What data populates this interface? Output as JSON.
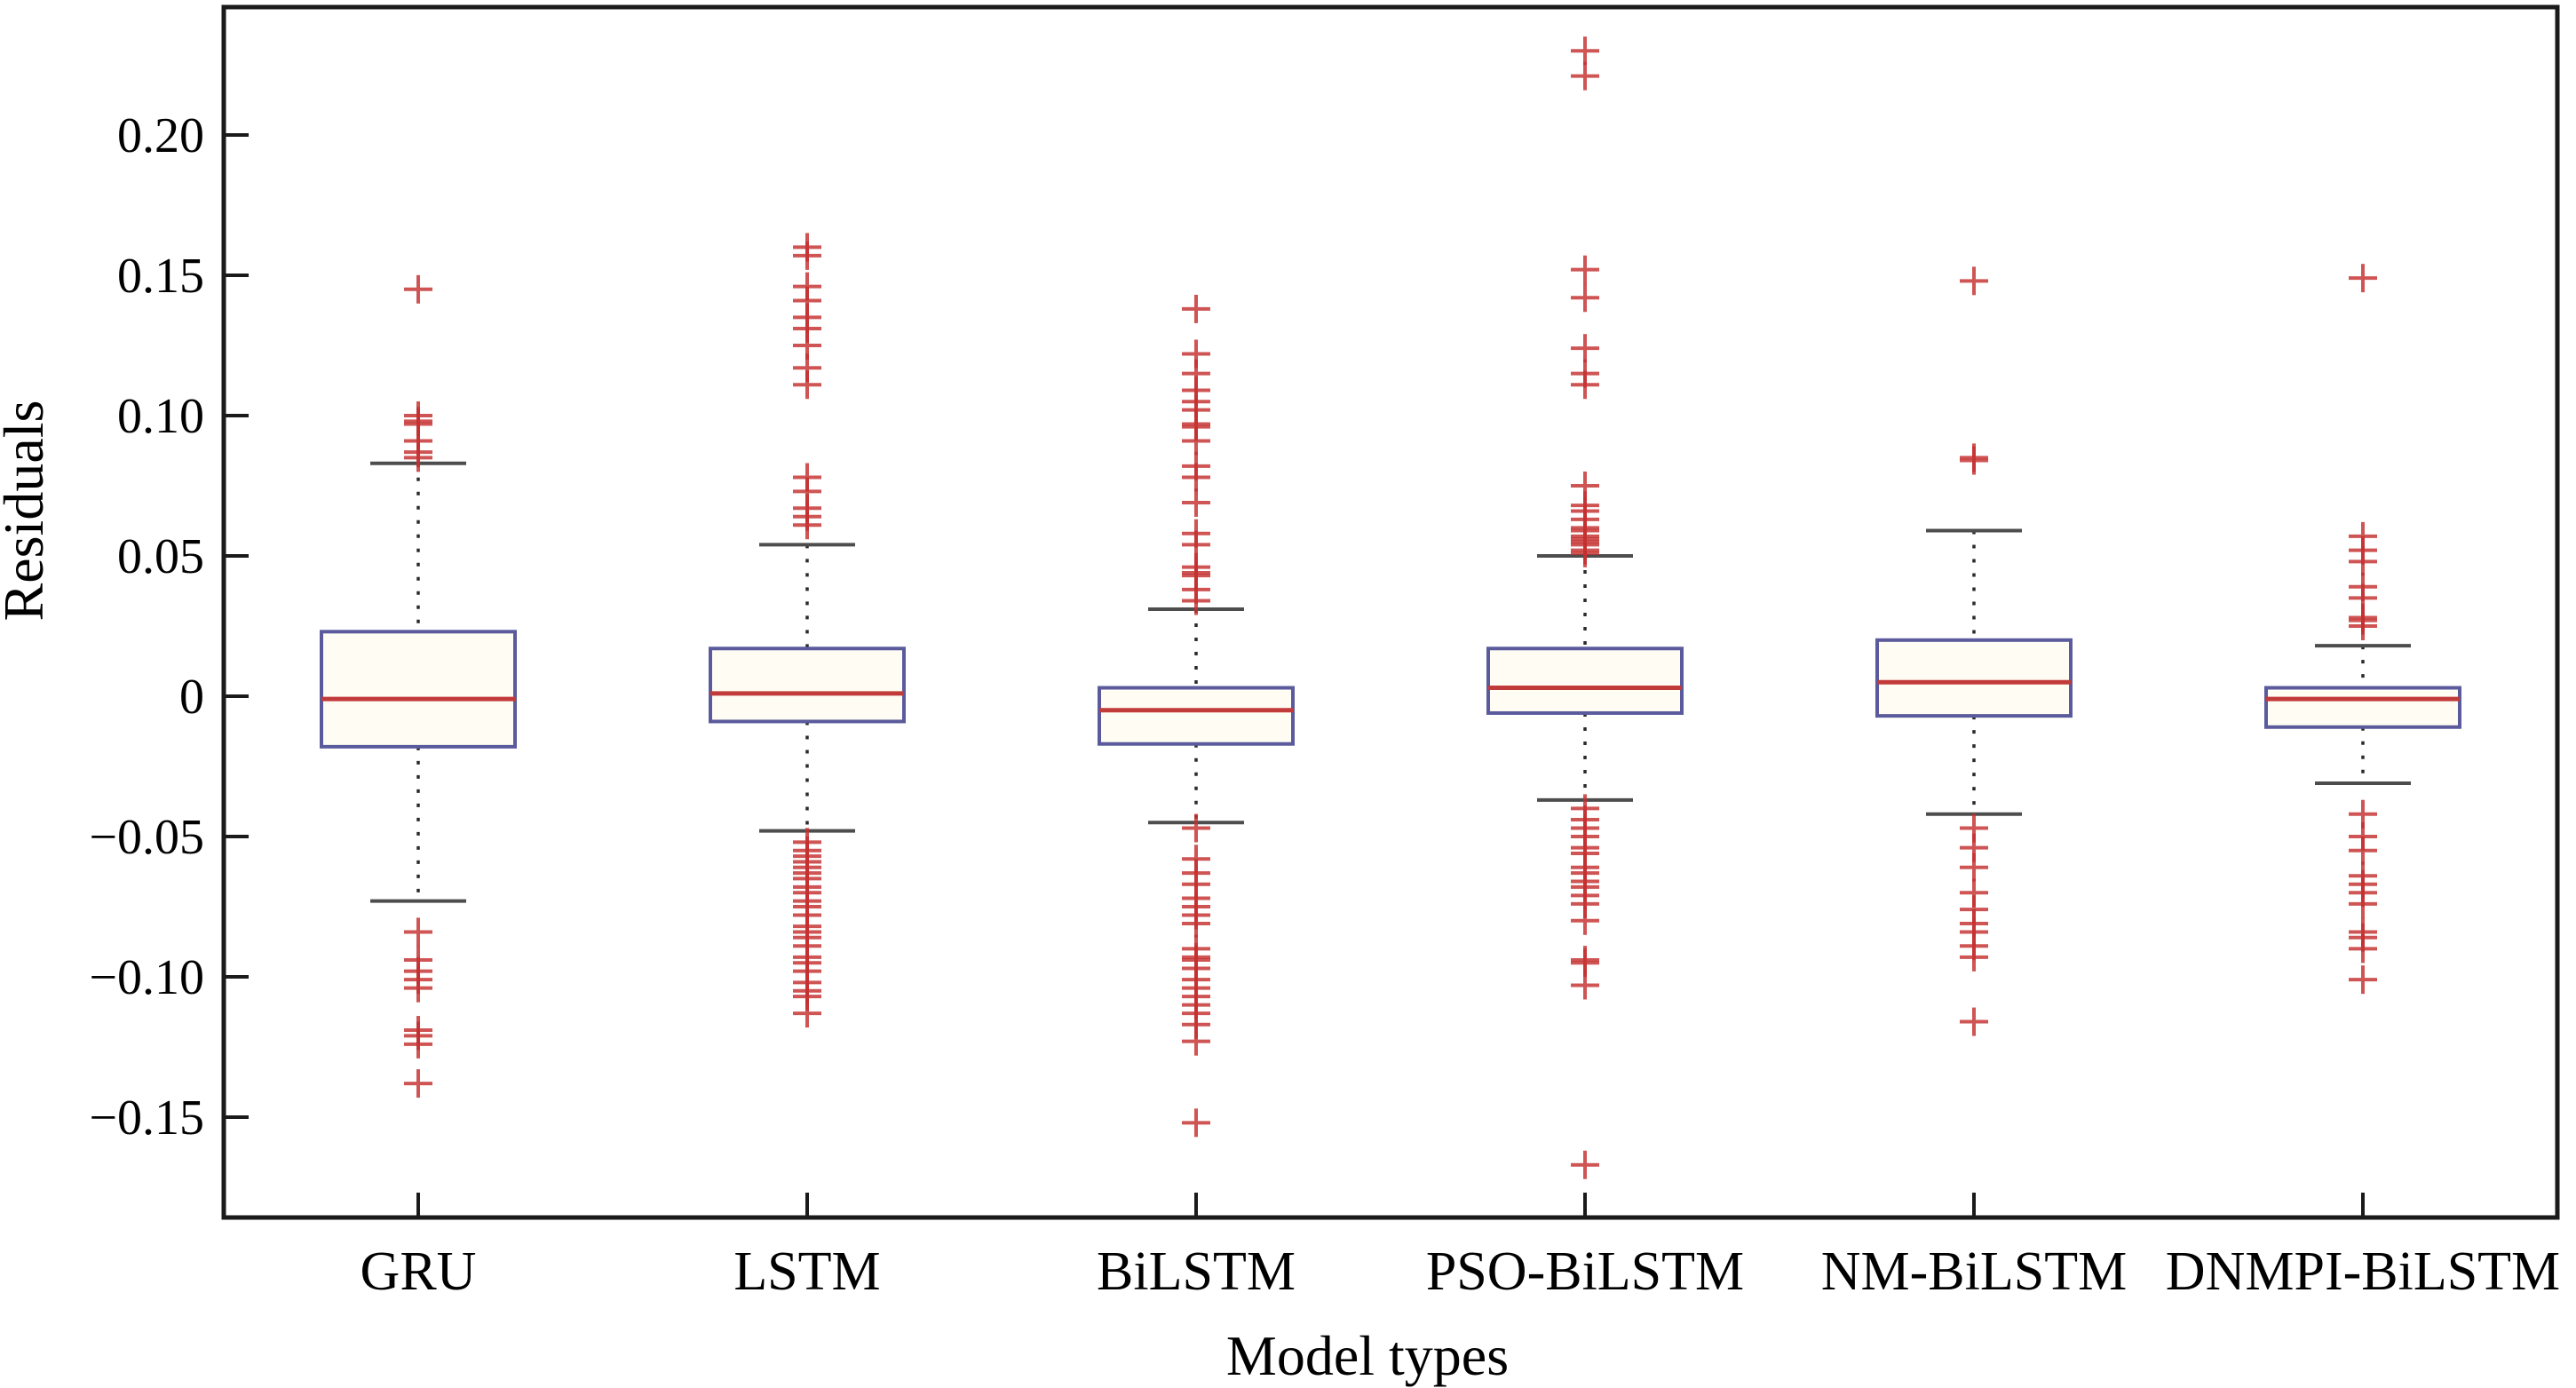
{
  "figure": {
    "y_axis_label": "Residuals",
    "x_axis_label": "Model types"
  },
  "chart_data": {
    "type": "boxplot",
    "title": "",
    "xlabel": "Model types",
    "ylabel": "Residuals",
    "ylim": [
      -0.186,
      0.246
    ],
    "grid": false,
    "categories": [
      "GRU",
      "LSTM",
      "BiLSTM",
      "PSO-BiLSTM",
      "NM-BiLSTM",
      "DNMPI-BiLSTM"
    ],
    "yticks": [
      {
        "value": 0.2,
        "label": "0.20"
      },
      {
        "value": 0.15,
        "label": "0.15"
      },
      {
        "value": 0.1,
        "label": "0.10"
      },
      {
        "value": 0.05,
        "label": "0.05"
      },
      {
        "value": 0.0,
        "label": "0"
      },
      {
        "value": -0.05,
        "label": "−0.05"
      },
      {
        "value": -0.1,
        "label": "−0.10"
      },
      {
        "value": -0.15,
        "label": "−0.15"
      }
    ],
    "series": [
      {
        "name": "GRU",
        "whisker_low": -0.073,
        "q1": -0.018,
        "median": -0.001,
        "q3": 0.023,
        "whisker_high": 0.083,
        "outliers_high": [
          0.085,
          0.087,
          0.091,
          0.097,
          0.098,
          0.1,
          0.145
        ],
        "outliers_low": [
          -0.084,
          -0.094,
          -0.098,
          -0.101,
          -0.104,
          -0.119,
          -0.121,
          -0.124,
          -0.138
        ]
      },
      {
        "name": "LSTM",
        "whisker_low": -0.048,
        "q1": -0.009,
        "median": 0.001,
        "q3": 0.017,
        "whisker_high": 0.054,
        "outliers_high": [
          0.061,
          0.064,
          0.067,
          0.073,
          0.078,
          0.111,
          0.117,
          0.125,
          0.131,
          0.135,
          0.141,
          0.146,
          0.157,
          0.16
        ],
        "outliers_low": [
          -0.052,
          -0.055,
          -0.057,
          -0.059,
          -0.061,
          -0.063,
          -0.065,
          -0.068,
          -0.07,
          -0.073,
          -0.075,
          -0.078,
          -0.082,
          -0.084,
          -0.086,
          -0.089,
          -0.093,
          -0.095,
          -0.098,
          -0.102,
          -0.105,
          -0.107,
          -0.113
        ]
      },
      {
        "name": "BiLSTM",
        "whisker_low": -0.045,
        "q1": -0.017,
        "median": -0.005,
        "q3": 0.003,
        "whisker_high": 0.031,
        "outliers_high": [
          0.034,
          0.038,
          0.043,
          0.044,
          0.046,
          0.054,
          0.058,
          0.069,
          0.078,
          0.082,
          0.091,
          0.096,
          0.097,
          0.102,
          0.105,
          0.109,
          0.115,
          0.122,
          0.138
        ],
        "outliers_low": [
          -0.047,
          -0.058,
          -0.063,
          -0.067,
          -0.072,
          -0.075,
          -0.078,
          -0.081,
          -0.09,
          -0.093,
          -0.094,
          -0.097,
          -0.101,
          -0.104,
          -0.107,
          -0.11,
          -0.113,
          -0.117,
          -0.123,
          -0.152
        ]
      },
      {
        "name": "PSO-BiLSTM",
        "whisker_low": -0.037,
        "q1": -0.006,
        "median": 0.003,
        "q3": 0.017,
        "whisker_high": 0.05,
        "outliers_high": [
          0.051,
          0.052,
          0.054,
          0.055,
          0.056,
          0.057,
          0.059,
          0.06,
          0.063,
          0.066,
          0.068,
          0.075,
          0.111,
          0.115,
          0.124,
          0.142,
          0.152,
          0.221,
          0.23
        ],
        "outliers_low": [
          -0.04,
          -0.044,
          -0.047,
          -0.05,
          -0.054,
          -0.056,
          -0.061,
          -0.063,
          -0.066,
          -0.068,
          -0.071,
          -0.074,
          -0.08,
          -0.094,
          -0.095,
          -0.103,
          -0.167
        ]
      },
      {
        "name": "NM-BiLSTM",
        "whisker_low": -0.042,
        "q1": -0.007,
        "median": 0.005,
        "q3": 0.02,
        "whisker_high": 0.059,
        "outliers_high": [
          0.084,
          0.085,
          0.148
        ],
        "outliers_low": [
          -0.047,
          -0.054,
          -0.061,
          -0.07,
          -0.076,
          -0.081,
          -0.084,
          -0.089,
          -0.093,
          -0.116
        ]
      },
      {
        "name": "DNMPI-BiLSTM",
        "whisker_low": -0.031,
        "q1": -0.011,
        "median": -0.001,
        "q3": 0.003,
        "whisker_high": 0.018,
        "outliers_high": [
          0.025,
          0.027,
          0.028,
          0.035,
          0.039,
          0.048,
          0.052,
          0.057,
          0.149
        ],
        "outliers_low": [
          -0.042,
          -0.05,
          -0.055,
          -0.064,
          -0.067,
          -0.07,
          -0.074,
          -0.084,
          -0.086,
          -0.09,
          -0.101
        ]
      }
    ],
    "colors": {
      "box_edge": "#5a5a9c",
      "box_fill": "#fffdf3",
      "median": "#c23b3b",
      "whisker_dash": "#2a2a2a",
      "cap": "#4d4d4d",
      "outlier": "#c53030",
      "axis": "#1a1a1a"
    }
  }
}
